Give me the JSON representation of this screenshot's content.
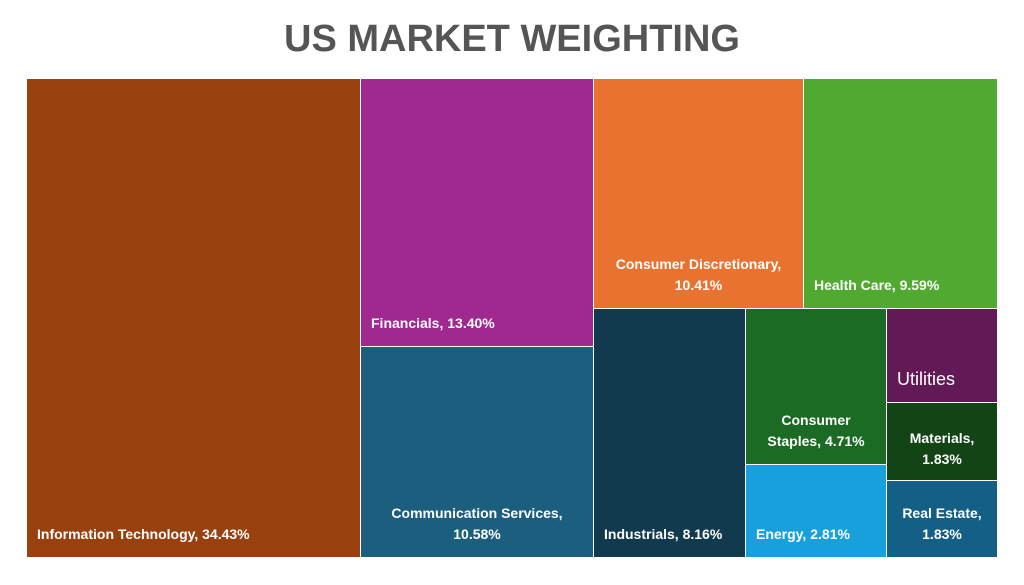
{
  "chart_data": {
    "type": "treemap",
    "title": "US MARKET WEIGHTING",
    "unit": "%",
    "items": [
      {
        "key": "it",
        "name": "Information Technology",
        "value": 34.43,
        "color": "#99400F",
        "label_lines": [
          "Information Technology, 34.43%"
        ]
      },
      {
        "key": "fin",
        "name": "Financials",
        "value": 13.4,
        "color": "#A0298F",
        "label_lines": [
          "Financials, 13.40%"
        ]
      },
      {
        "key": "comm",
        "name": "Communication Services",
        "value": 10.58,
        "color": "#1B5E7E",
        "label_lines": [
          "Communication Services,",
          "10.58%"
        ]
      },
      {
        "key": "cd",
        "name": "Consumer Discretionary",
        "value": 10.41,
        "color": "#E87330",
        "label_lines": [
          "Consumer Discretionary,",
          "10.41%"
        ]
      },
      {
        "key": "hc",
        "name": "Health Care",
        "value": 9.59,
        "color": "#4FAA2F",
        "label_lines": [
          "Health Care, 9.59%"
        ]
      },
      {
        "key": "ind",
        "name": "Industrials",
        "value": 8.16,
        "color": "#113A4E",
        "label_lines": [
          "Industrials, 8.16%"
        ]
      },
      {
        "key": "cs",
        "name": "Consumer Staples",
        "value": 4.71,
        "color": "#1C6B24",
        "label_lines": [
          "Consumer",
          "Staples, 4.71%"
        ]
      },
      {
        "key": "en",
        "name": "Energy",
        "value": 2.81,
        "color": "#18A0DD",
        "label_lines": [
          "Energy, 2.81%"
        ]
      },
      {
        "key": "util",
        "name": "Utilities",
        "value": null,
        "color": "#621A57",
        "label_lines": [
          "Utilities"
        ]
      },
      {
        "key": "mat",
        "name": "Materials",
        "value": 1.83,
        "color": "#124416",
        "label_lines": [
          "Materials,",
          "1.83%"
        ]
      },
      {
        "key": "re",
        "name": "Real Estate",
        "value": 1.83,
        "color": "#145F85",
        "label_lines": [
          "Real Estate,",
          "1.83%"
        ]
      }
    ]
  }
}
